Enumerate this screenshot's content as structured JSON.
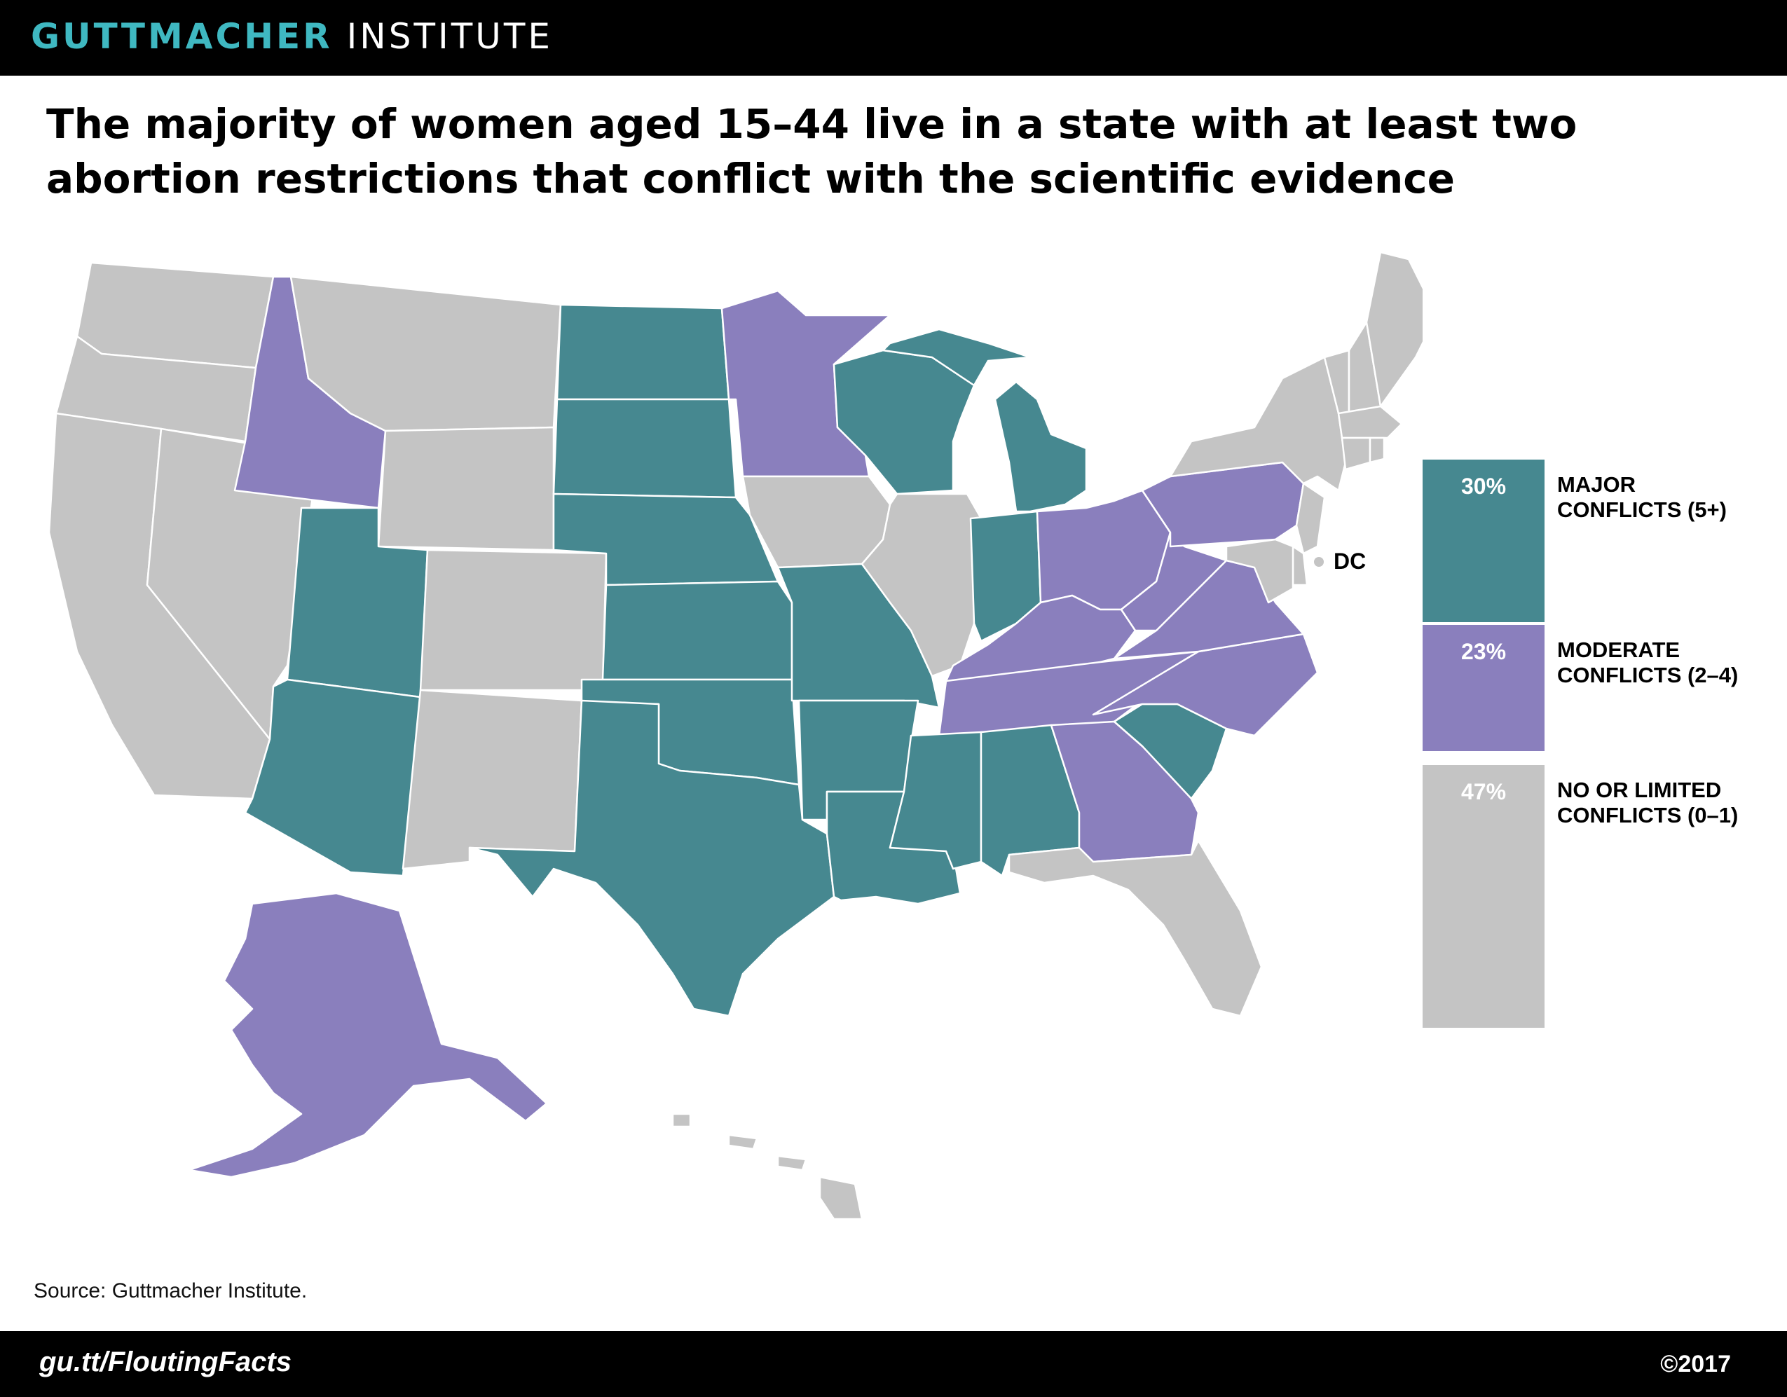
{
  "header": {
    "brand_bold": "GUTTMACHER",
    "brand_light": "INSTITUTE"
  },
  "title": "The majority of women aged 15–44 live in a state with at least two abortion restrictions that conflict with the scientific evidence",
  "colors": {
    "major": "#468890",
    "moderate": "#8a7fbd",
    "none": "#c4c4c4"
  },
  "legend": [
    {
      "key": "major",
      "pct": "30%",
      "label": "MAJOR CONFLICTS (5+)"
    },
    {
      "key": "moderate",
      "pct": "23%",
      "label": "MODERATE CONFLICTS (2–4)"
    },
    {
      "key": "none",
      "pct": "47%",
      "label": "NO OR LIMITED CONFLICTS (0–1)"
    }
  ],
  "dc_label": "DC",
  "states": {
    "major": [
      "ND",
      "SD",
      "NE",
      "KS",
      "OK",
      "TX",
      "MO",
      "AR",
      "LA",
      "MS",
      "AL",
      "IN",
      "MI",
      "WI",
      "UT",
      "AZ",
      "SC"
    ],
    "moderate": [
      "ID",
      "MN",
      "OH",
      "PA",
      "KY",
      "WV",
      "VA",
      "NC",
      "TN",
      "GA",
      "AK"
    ],
    "none": [
      "WA",
      "OR",
      "CA",
      "NV",
      "MT",
      "WY",
      "CO",
      "NM",
      "IA",
      "IL",
      "FL",
      "ME",
      "NH",
      "VT",
      "MA",
      "RI",
      "CT",
      "NY",
      "NJ",
      "DE",
      "MD",
      "HI",
      "DC"
    ]
  },
  "source": "Source: Guttmacher Institute.",
  "footer": {
    "url": "gu.tt/FloutingFacts",
    "copyright": "©2017"
  }
}
